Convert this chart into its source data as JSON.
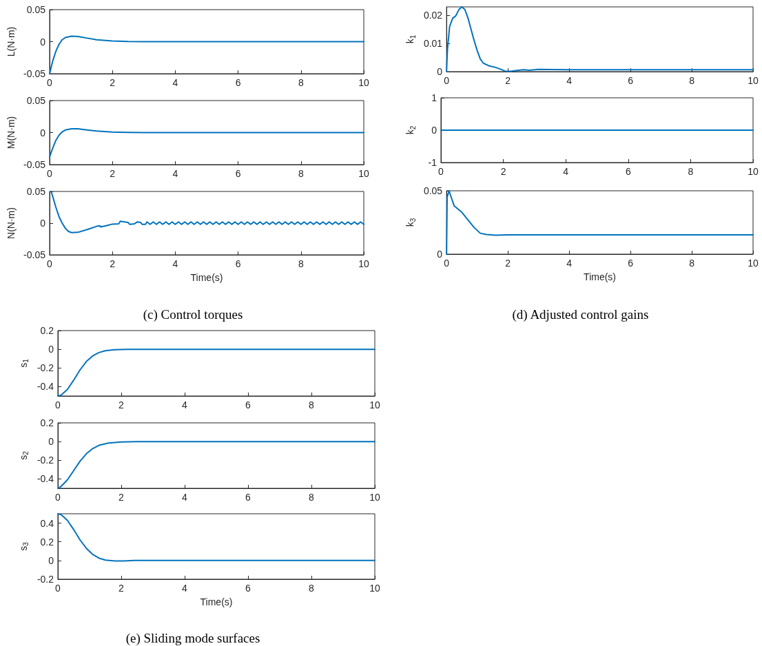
{
  "chart_data": [
    {
      "type": "line",
      "ylabel": "L(N·m)",
      "xlim": [
        0,
        10
      ],
      "xticks": [
        0,
        2,
        4,
        6,
        8,
        10
      ],
      "ylim": [
        -0.05,
        0.05
      ],
      "yticks": [
        -0.05,
        0,
        0.05
      ],
      "grid": false,
      "marker": "none",
      "line_style": "solid",
      "series": [
        {
          "color": "#0072bd",
          "x": [
            0,
            0.1,
            0.2,
            0.3,
            0.4,
            0.5,
            0.7,
            0.9,
            1.2,
            1.5,
            2,
            2.5,
            3,
            10
          ],
          "values": [
            -0.05,
            -0.03,
            -0.015,
            -0.004,
            0.003,
            0.0065,
            0.0085,
            0.008,
            0.0055,
            0.003,
            0.001,
            0.0002,
            0,
            0
          ]
        }
      ]
    },
    {
      "type": "line",
      "ylabel": "M(N·m)",
      "xlim": [
        0,
        10
      ],
      "xticks": [
        0,
        2,
        4,
        6,
        8,
        10
      ],
      "ylim": [
        -0.05,
        0.05
      ],
      "yticks": [
        -0.05,
        0,
        0.05
      ],
      "grid": false,
      "marker": "none",
      "line_style": "solid",
      "series": [
        {
          "color": "#0072bd",
          "x": [
            0,
            0.1,
            0.2,
            0.3,
            0.4,
            0.5,
            0.7,
            0.9,
            1.2,
            1.5,
            2,
            2.5,
            3,
            10
          ],
          "values": [
            -0.038,
            -0.024,
            -0.012,
            -0.004,
            0.001,
            0.004,
            0.006,
            0.0058,
            0.004,
            0.0025,
            0.0008,
            0.0002,
            0,
            0
          ]
        }
      ]
    },
    {
      "type": "line",
      "ylabel": "N(N·m)",
      "xlabel": "Time(s)",
      "annotations": [
        "(c) Control torques"
      ],
      "xlim": [
        0,
        10
      ],
      "xticks": [
        0,
        2,
        4,
        6,
        8,
        10
      ],
      "ylim": [
        -0.05,
        0.05
      ],
      "yticks": [
        -0.05,
        0,
        0.05
      ],
      "grid": false,
      "marker": "none",
      "line_style": "solid",
      "series": [
        {
          "color": "#0072bd",
          "x": [
            0.05,
            0.1,
            0.2,
            0.3,
            0.4,
            0.5,
            0.6,
            0.7,
            0.9,
            1.2,
            1.5,
            1.6,
            1.62,
            1.8,
            2.0,
            2.2,
            2.25,
            2.5,
            2.55,
            2.7,
            2.8,
            2.9,
            2.95,
            3.05,
            3.1,
            3.2,
            3.3,
            3.4,
            3.5,
            3.6,
            3.7,
            3.8,
            3.9,
            4.0,
            4.1,
            4.2,
            4.3,
            4.4,
            4.5,
            4.6,
            4.7,
            4.8,
            4.9,
            5.0,
            5.1,
            5.2,
            5.3,
            5.4,
            5.5,
            5.6,
            5.7,
            5.8,
            5.9,
            6.0,
            6.1,
            6.2,
            6.3,
            6.4,
            6.5,
            6.6,
            6.7,
            6.8,
            6.9,
            7.0,
            7.1,
            7.2,
            7.3,
            7.4,
            7.5,
            7.6,
            7.7,
            7.8,
            7.9,
            8.0,
            8.1,
            8.2,
            8.3,
            8.4,
            8.5,
            8.6,
            8.7,
            8.8,
            8.9,
            9.0,
            9.1,
            9.2,
            9.3,
            9.4,
            9.5,
            9.6,
            9.7,
            9.8,
            9.9,
            10.0
          ],
          "values": [
            0.05,
            0.042,
            0.025,
            0.01,
            0,
            -0.008,
            -0.013,
            -0.015,
            -0.0145,
            -0.01,
            -0.005,
            -0.004,
            -0.006,
            -0.004,
            -0.0015,
            -0.001,
            0.003,
            0.001,
            -0.002,
            -0.001,
            0.002,
            0.001,
            -0.002,
            -0.002,
            0.002,
            -0.002,
            0.002,
            -0.002,
            0.002,
            -0.002,
            0.002,
            -0.002,
            0.002,
            -0.002,
            0.002,
            -0.002,
            0.002,
            -0.002,
            0.002,
            -0.002,
            0.002,
            -0.002,
            0.002,
            -0.002,
            0.002,
            -0.002,
            0.002,
            -0.002,
            0.002,
            -0.002,
            0.002,
            -0.002,
            0.002,
            -0.002,
            0.002,
            -0.002,
            0.002,
            -0.002,
            0.002,
            -0.002,
            0.002,
            -0.002,
            0.002,
            -0.002,
            0.002,
            -0.002,
            0.002,
            -0.002,
            0.002,
            -0.002,
            0.002,
            -0.002,
            0.002,
            -0.002,
            0.002,
            -0.002,
            0.002,
            -0.002,
            0.002,
            -0.002,
            0.002,
            -0.002,
            0.002,
            -0.002,
            0.002,
            -0.002,
            0.002,
            -0.002,
            0.002,
            -0.002,
            0.002,
            -0.002,
            0.002,
            -0.002
          ]
        }
      ]
    },
    {
      "type": "line",
      "ylabel": "k$_{1}$",
      "xlim": [
        0,
        10
      ],
      "xticks": [
        0,
        2,
        4,
        6,
        8,
        10
      ],
      "ylim": [
        0,
        0.023
      ],
      "yticks": [
        0,
        0.01,
        0.02
      ],
      "grid": false,
      "marker": "none",
      "line_style": "solid",
      "series": [
        {
          "color": "#0072bd",
          "x": [
            0,
            0.03,
            0.1,
            0.2,
            0.3,
            0.4,
            0.5,
            0.6,
            0.7,
            0.8,
            0.9,
            1.0,
            1.1,
            1.2,
            1.4,
            1.6,
            1.8,
            1.9,
            2.1,
            2.3,
            2.5,
            2.7,
            3,
            4,
            10
          ],
          "values": [
            0,
            0.008,
            0.016,
            0.019,
            0.0198,
            0.022,
            0.023,
            0.022,
            0.019,
            0.015,
            0.011,
            0.0075,
            0.0045,
            0.003,
            0.002,
            0.0015,
            0.0007,
            0.0002,
            0.0001,
            0.0004,
            0.0007,
            0.0005,
            0.0008,
            0.0007,
            0.0007
          ]
        }
      ]
    },
    {
      "type": "line",
      "ylabel": "k$_{2}$",
      "xlim": [
        0,
        10
      ],
      "xticks": [
        0,
        2,
        4,
        6,
        8,
        10
      ],
      "ylim": [
        -1,
        1
      ],
      "yticks": [
        -1,
        0,
        1
      ],
      "grid": false,
      "marker": "none",
      "line_style": "solid",
      "series": [
        {
          "color": "#0072bd",
          "x": [
            0,
            10
          ],
          "values": [
            0,
            0
          ]
        }
      ]
    },
    {
      "type": "line",
      "ylabel": "k$_{3}$",
      "xlabel": "Time(s)",
      "annotations": [
        "(d) Adjusted control gains"
      ],
      "xlim": [
        0,
        10
      ],
      "xticks": [
        0,
        2,
        4,
        6,
        8,
        10
      ],
      "ylim": [
        0,
        0.05
      ],
      "yticks": [
        0,
        0.05
      ],
      "grid": false,
      "marker": "none",
      "line_style": "solid",
      "series": [
        {
          "color": "#0072bd",
          "x": [
            0,
            0.02,
            0.08,
            0.15,
            0.25,
            0.4,
            0.5,
            0.7,
            0.9,
            1.1,
            1.3,
            1.6,
            2,
            3,
            10
          ],
          "values": [
            0,
            0.045,
            0.05,
            0.045,
            0.038,
            0.035,
            0.033,
            0.027,
            0.021,
            0.0165,
            0.0155,
            0.015,
            0.0152,
            0.0152,
            0.0152
          ]
        }
      ]
    },
    {
      "type": "line",
      "ylabel": "s$_{1}$",
      "xlim": [
        0,
        10
      ],
      "xticks": [
        0,
        2,
        4,
        6,
        8,
        10
      ],
      "ylim": [
        -0.5,
        0.2
      ],
      "yticks": [
        -0.4,
        -0.2,
        0,
        0.2
      ],
      "grid": false,
      "marker": "none",
      "line_style": "solid",
      "series": [
        {
          "color": "#0072bd",
          "x": [
            0,
            0.1,
            0.3,
            0.5,
            0.7,
            0.9,
            1.1,
            1.3,
            1.5,
            1.8,
            2.2,
            10
          ],
          "values": [
            -0.5,
            -0.49,
            -0.43,
            -0.33,
            -0.22,
            -0.13,
            -0.07,
            -0.035,
            -0.015,
            -0.004,
            0,
            0
          ]
        }
      ]
    },
    {
      "type": "line",
      "ylabel": "s$_{2}$",
      "xlim": [
        0,
        10
      ],
      "xticks": [
        0,
        2,
        4,
        6,
        8,
        10
      ],
      "ylim": [
        -0.5,
        0.2
      ],
      "yticks": [
        -0.4,
        -0.2,
        0,
        0.2
      ],
      "grid": false,
      "marker": "none",
      "line_style": "solid",
      "series": [
        {
          "color": "#0072bd",
          "x": [
            0,
            0.1,
            0.3,
            0.5,
            0.7,
            0.9,
            1.1,
            1.3,
            1.6,
            2,
            2.5,
            10
          ],
          "values": [
            -0.5,
            -0.48,
            -0.41,
            -0.31,
            -0.21,
            -0.13,
            -0.075,
            -0.04,
            -0.015,
            -0.004,
            0,
            0
          ]
        }
      ]
    },
    {
      "type": "line",
      "ylabel": "s$_{3}$",
      "xlabel": "Time(s)",
      "annotations": [
        "(e) Sliding mode surfaces"
      ],
      "xlim": [
        0,
        10
      ],
      "xticks": [
        0,
        2,
        4,
        6,
        8,
        10
      ],
      "ylim": [
        -0.2,
        0.5
      ],
      "yticks": [
        -0.2,
        0,
        0.2,
        0.4
      ],
      "grid": false,
      "marker": "none",
      "line_style": "solid",
      "series": [
        {
          "color": "#0072bd",
          "x": [
            0,
            0.1,
            0.3,
            0.5,
            0.7,
            0.9,
            1.1,
            1.3,
            1.5,
            1.8,
            2.1,
            2.4,
            2.7,
            10
          ],
          "values": [
            0.5,
            0.49,
            0.43,
            0.33,
            0.22,
            0.13,
            0.065,
            0.025,
            0.005,
            -0.005,
            -0.004,
            0.001,
            0,
            0
          ]
        }
      ]
    }
  ]
}
